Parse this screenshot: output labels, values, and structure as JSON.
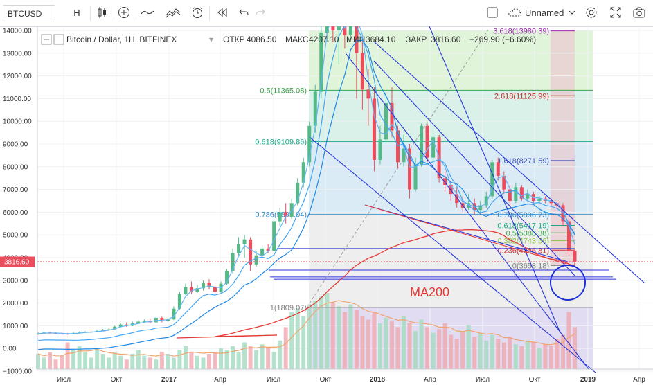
{
  "toolbar": {
    "symbol": "BTCUSD",
    "interval": "H",
    "layout_name": "Unnamed",
    "icons": [
      "candles-icon",
      "add-indicator-icon",
      "compare-icon",
      "indicators-icon",
      "alert-icon",
      "replay-icon",
      "undo-icon",
      "redo-icon",
      "fullscreen-icon",
      "settings-icon",
      "expand-icon",
      "camera-icon"
    ]
  },
  "legend": {
    "title": "Bitcoin / Dollar, 1H, BITFINEX",
    "open_label": "ОТКР",
    "open": "4086.50",
    "high_label": "МАКС",
    "high": "4207.10",
    "low_label": "МИН",
    "low": "3684.10",
    "close_label": "ЗАКР",
    "close": "3816.60",
    "change": "−269.90 (−6.60%)"
  },
  "annotation": {
    "ma200": "MA200"
  },
  "price_tag": "3816.60",
  "colors": {
    "up": "#53b987",
    "down": "#eb4d5c",
    "ma": "#2196f3",
    "ma200": "#e53935",
    "trend": "#2536d9"
  },
  "chart_data": {
    "type": "candlestick",
    "title": "Bitcoin / Dollar, 1H, BITFINEX",
    "yticks": [
      "14000.00",
      "13000.00",
      "12000.00",
      "11000.00",
      "10000.00",
      "9000.00",
      "8000.00",
      "7000.00",
      "6000.00",
      "5000.00",
      "4000.00",
      "3000.00",
      "2000.00",
      "1000.00",
      "0.00",
      "−1000.00"
    ],
    "xticks": [
      "Июл",
      "Окт",
      "2017",
      "Апр",
      "Июл",
      "Окт",
      "2018",
      "Апр",
      "Июл",
      "Окт",
      "2019",
      "Апр"
    ],
    "ylim": [
      -1000,
      14000
    ],
    "fib_left": [
      {
        "label": "0.5(11365.08)",
        "value": 11365.08,
        "color": "#3aa34a"
      },
      {
        "label": "0.618(9109.86)",
        "value": 9109.86,
        "color": "#1fa58a"
      },
      {
        "label": "0.786(5899.04)",
        "value": 5899.04,
        "color": "#2f87c5"
      },
      {
        "label": "1(1809.07)",
        "value": 1809.07,
        "color": "#808080"
      }
    ],
    "fib_right": [
      {
        "label": "3.618(13980.39)",
        "value": 13980.39,
        "color": "#9c27b0"
      },
      {
        "label": "2.618(11125.99)",
        "value": 11125.99,
        "color": "#c62828"
      },
      {
        "label": "1.618(8271.59)",
        "value": 8271.59,
        "color": "#3f51b5"
      },
      {
        "label": "0.786(5896.73)",
        "value": 5896.73,
        "color": "#2f87c5"
      },
      {
        "label": "0.618(5417.19)",
        "value": 5417.19,
        "color": "#1fa58a"
      },
      {
        "label": "0.5(5088.38)",
        "value": 5088.38,
        "color": "#3aa34a"
      },
      {
        "label": "0.382(4743.56)",
        "value": 4743.56,
        "color": "#8bc34a"
      },
      {
        "label": "0.236(4326.81)",
        "value": 4326.81,
        "color": "#d32f2f"
      },
      {
        "label": "0(3653.18)",
        "value": 3653.18,
        "color": "#808080"
      }
    ],
    "candles": [
      [
        620,
        650,
        700,
        600
      ],
      [
        650,
        700,
        760,
        640
      ],
      [
        700,
        680,
        720,
        640
      ],
      [
        680,
        660,
        700,
        620
      ],
      [
        660,
        650,
        690,
        610
      ],
      [
        650,
        640,
        680,
        600
      ],
      [
        640,
        680,
        720,
        620
      ],
      [
        680,
        700,
        740,
        660
      ],
      [
        700,
        720,
        760,
        680
      ],
      [
        720,
        730,
        780,
        700
      ],
      [
        730,
        770,
        820,
        720
      ],
      [
        770,
        800,
        860,
        760
      ],
      [
        800,
        840,
        900,
        780
      ],
      [
        840,
        960,
        1000,
        820
      ],
      [
        960,
        1050,
        1100,
        930
      ],
      [
        1050,
        1000,
        1150,
        950
      ],
      [
        1000,
        1100,
        1180,
        980
      ],
      [
        1100,
        1180,
        1250,
        1080
      ],
      [
        1180,
        1200,
        1280,
        1120
      ],
      [
        1200,
        1150,
        1300,
        1100
      ],
      [
        1150,
        1350,
        1400,
        1120
      ],
      [
        1350,
        1200,
        1400,
        1150
      ],
      [
        1200,
        1280,
        1350,
        1180
      ],
      [
        1280,
        1750,
        1850,
        1250
      ],
      [
        1750,
        2400,
        2500,
        1700
      ],
      [
        2400,
        2700,
        2850,
        2350
      ],
      [
        2700,
        2500,
        2950,
        2400
      ],
      [
        2500,
        2650,
        2800,
        2450
      ],
      [
        2650,
        2900,
        3000,
        2550
      ],
      [
        2900,
        2700,
        3050,
        2600
      ],
      [
        2700,
        2500,
        2800,
        2400
      ],
      [
        2500,
        2850,
        2950,
        2450
      ],
      [
        2850,
        3400,
        3500,
        2800
      ],
      [
        3400,
        4200,
        4400,
        3300
      ],
      [
        4200,
        4600,
        4900,
        4100
      ],
      [
        4600,
        4800,
        5000,
        4000
      ],
      [
        4800,
        3700,
        4900,
        3400
      ],
      [
        3700,
        4100,
        4300,
        3600
      ],
      [
        4100,
        4400,
        4500,
        4000
      ],
      [
        4400,
        4300,
        4600,
        4200
      ],
      [
        4300,
        5600,
        5700,
        4250
      ],
      [
        5600,
        6000,
        6200,
        5400
      ],
      [
        6000,
        5800,
        6400,
        5500
      ],
      [
        5800,
        6400,
        6600,
        5700
      ],
      [
        6400,
        7300,
        7500,
        6300
      ],
      [
        7300,
        8200,
        8400,
        7100
      ],
      [
        8200,
        9800,
        10000,
        8000
      ],
      [
        9800,
        11300,
        11600,
        9500
      ],
      [
        11300,
        13900,
        14500,
        11000
      ],
      [
        13900,
        16500,
        17000,
        13500
      ],
      [
        16500,
        14000,
        17500,
        13500
      ],
      [
        14000,
        14500,
        15500,
        12500
      ],
      [
        14500,
        13800,
        15000,
        13200
      ],
      [
        13800,
        17000,
        17300,
        13500
      ],
      [
        17000,
        13000,
        17300,
        11000
      ],
      [
        13000,
        11400,
        13800,
        10500
      ],
      [
        11400,
        11000,
        12300,
        9800
      ],
      [
        11000,
        8300,
        11500,
        7800
      ],
      [
        8300,
        9200,
        9800,
        8100
      ],
      [
        9200,
        10800,
        11200,
        9000
      ],
      [
        10800,
        9600,
        11500,
        9300
      ],
      [
        9600,
        8200,
        9800,
        7900
      ],
      [
        8200,
        8800,
        9400,
        8000
      ],
      [
        8800,
        7000,
        9000,
        6600
      ],
      [
        7000,
        8100,
        8400,
        6900
      ],
      [
        8100,
        9800,
        9900,
        8000
      ],
      [
        9800,
        8400,
        9900,
        8200
      ],
      [
        8400,
        9300,
        9500,
        8200
      ],
      [
        9300,
        7500,
        9400,
        7300
      ],
      [
        7500,
        7200,
        7800,
        6900
      ],
      [
        7200,
        6800,
        7400,
        6500
      ],
      [
        6800,
        6400,
        7100,
        6200
      ],
      [
        6400,
        6200,
        6700,
        6000
      ],
      [
        6200,
        6400,
        6800,
        6100
      ],
      [
        6400,
        6100,
        6600,
        5900
      ],
      [
        6100,
        6300,
        6500,
        6000
      ],
      [
        6300,
        6700,
        6900,
        6200
      ],
      [
        6700,
        8200,
        8300,
        6600
      ],
      [
        8200,
        7600,
        8400,
        7400
      ],
      [
        7600,
        7000,
        7800,
        6800
      ],
      [
        7000,
        6500,
        7200,
        6300
      ],
      [
        6500,
        7100,
        7300,
        6400
      ],
      [
        7100,
        6600,
        7200,
        6500
      ],
      [
        6600,
        6800,
        7000,
        6500
      ],
      [
        6800,
        6500,
        6900,
        6400
      ],
      [
        6500,
        6600,
        6700,
        6400
      ],
      [
        6600,
        6500,
        6700,
        6400
      ],
      [
        6500,
        6400,
        6600,
        6300
      ],
      [
        6400,
        6300,
        6500,
        6200
      ],
      [
        6300,
        5600,
        6400,
        5400
      ],
      [
        5600,
        4300,
        5700,
        4100
      ],
      [
        4300,
        3816.6,
        4400,
        3684
      ]
    ],
    "volumes": [
      8,
      6,
      9,
      5,
      7,
      14,
      10,
      12,
      9,
      6,
      11,
      8,
      6,
      9,
      7,
      5,
      8,
      10,
      7,
      6,
      5,
      9,
      8,
      6,
      10,
      12,
      9,
      7,
      6,
      8,
      9,
      11,
      10,
      12,
      9,
      14,
      12,
      10,
      13,
      11,
      9,
      15,
      22,
      30,
      32,
      28,
      34,
      36,
      38,
      40,
      35,
      33,
      30,
      34,
      31,
      28,
      26,
      30,
      24,
      27,
      25,
      22,
      28,
      24,
      20,
      26,
      22,
      19,
      21,
      24,
      18,
      16,
      20,
      23,
      17,
      19,
      15,
      18,
      16,
      14,
      17,
      13,
      12,
      15,
      14,
      11,
      13,
      12,
      16,
      18,
      30,
      22
    ],
    "ma_fast_label": "MA",
    "ma200_label": "MA200"
  }
}
